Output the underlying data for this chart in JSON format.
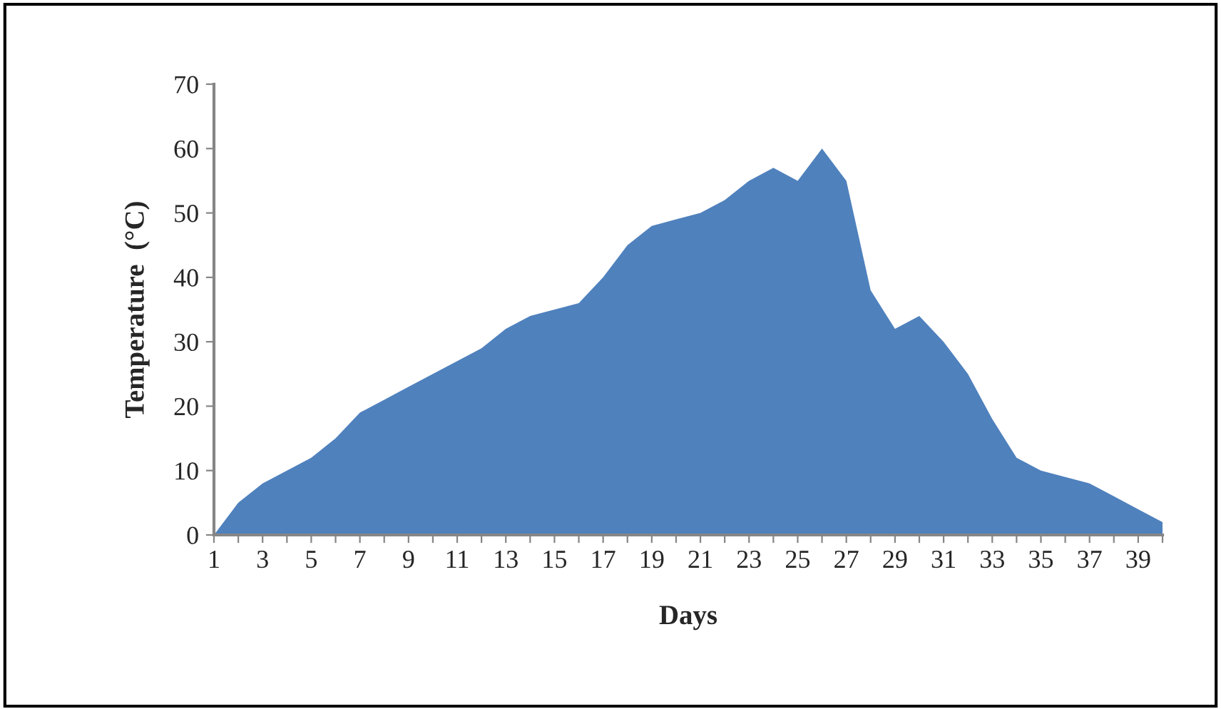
{
  "chart_data": {
    "type": "area",
    "xlabel": "Days",
    "ylabel": "Temperature  (°C)",
    "categories": [
      "1",
      null,
      "3",
      null,
      "5",
      null,
      "7",
      null,
      "9",
      null,
      "11",
      null,
      "13",
      null,
      "15",
      null,
      "17",
      null,
      "19",
      null,
      "21",
      null,
      "23",
      null,
      "25",
      null,
      "27",
      null,
      "29",
      null,
      "31",
      null,
      "33",
      null,
      "35",
      null,
      "37",
      null,
      "39",
      null
    ],
    "series": [
      {
        "color": "#4f81bd",
        "values": [
          0,
          5,
          8,
          10,
          12,
          15,
          19,
          21,
          23,
          25,
          27,
          29,
          32,
          34,
          35,
          36,
          40,
          45,
          48,
          49,
          50,
          52,
          55,
          57,
          55,
          60,
          55,
          38,
          32,
          34,
          30,
          25,
          18,
          12,
          10,
          9,
          8,
          6,
          4,
          2
        ]
      }
    ],
    "ylim": [
      0,
      70
    ],
    "yticks": [
      0,
      10,
      20,
      30,
      40,
      50,
      60,
      70
    ],
    "grid": false
  }
}
